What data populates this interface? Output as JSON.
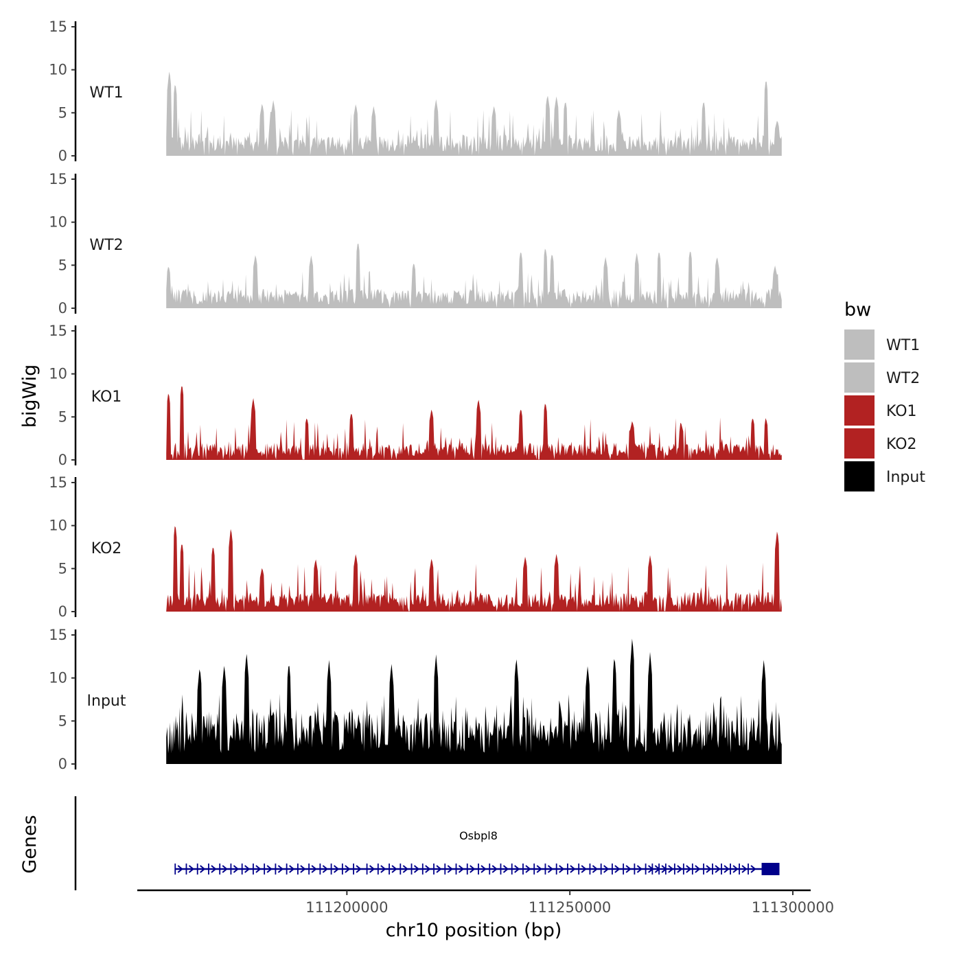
{
  "chart_data": {
    "type": "area",
    "title": "",
    "ylabel": "bigWig",
    "genes_label": "Genes",
    "xlabel": "chr10 position (bp)",
    "x_range": [
      111159500,
      111297500
    ],
    "x_axis_limits": [
      111153000,
      111304000
    ],
    "x_ticks": [
      111200000,
      111250000,
      111300000
    ],
    "x_tick_labels": [
      "111200000",
      "111250000",
      "111300000"
    ],
    "ylim": [
      0,
      15
    ],
    "y_ticks": [
      0,
      5,
      10,
      15
    ],
    "y_tick_labels": [
      "0",
      "5",
      "10",
      "15"
    ],
    "series": [
      {
        "name": "WT1",
        "color": "#bebebe",
        "baseline": 2.0,
        "max_value": 10.1,
        "gap_fraction": 0.04,
        "peaks": [
          [
            111160200,
            10.1
          ],
          [
            111161500,
            8.6
          ],
          [
            111181000,
            6.2
          ],
          [
            111183500,
            6.5
          ],
          [
            111202000,
            6.1
          ],
          [
            111206000,
            5.8
          ],
          [
            111220000,
            6.6
          ],
          [
            111233000,
            5.9
          ],
          [
            111245000,
            7.2
          ],
          [
            111247000,
            7.0
          ],
          [
            111249000,
            6.5
          ],
          [
            111261000,
            5.4
          ],
          [
            111280000,
            6.5
          ],
          [
            111294000,
            9.1
          ],
          [
            111296500,
            4.2
          ]
        ]
      },
      {
        "name": "WT2",
        "color": "#bebebe",
        "baseline": 1.8,
        "max_value": 7.9,
        "gap_fraction": 0.04,
        "peaks": [
          [
            111160000,
            5.0
          ],
          [
            111179500,
            6.3
          ],
          [
            111192000,
            6.2
          ],
          [
            111202500,
            7.9
          ],
          [
            111215000,
            5.4
          ],
          [
            111239000,
            6.8
          ],
          [
            111244500,
            7.2
          ],
          [
            111246000,
            6.5
          ],
          [
            111258000,
            6.0
          ],
          [
            111265000,
            6.5
          ],
          [
            111270000,
            6.8
          ],
          [
            111277000,
            6.9
          ],
          [
            111283000,
            6.1
          ],
          [
            111296000,
            5.0
          ]
        ]
      },
      {
        "name": "KO1",
        "color": "#b22222",
        "baseline": 1.6,
        "max_value": 9.0,
        "gap_fraction": 0.06,
        "peaks": [
          [
            111160000,
            8.0
          ],
          [
            111163000,
            9.0
          ],
          [
            111179000,
            7.3
          ],
          [
            111191000,
            5.0
          ],
          [
            111201000,
            5.6
          ],
          [
            111219000,
            6.0
          ],
          [
            111229500,
            7.2
          ],
          [
            111239000,
            6.1
          ],
          [
            111244500,
            6.8
          ],
          [
            111264000,
            4.6
          ],
          [
            111275000,
            4.2
          ],
          [
            111291000,
            5.0
          ],
          [
            111294000,
            4.8
          ]
        ]
      },
      {
        "name": "KO2",
        "color": "#b22222",
        "baseline": 1.8,
        "max_value": 10.4,
        "gap_fraction": 0.05,
        "peaks": [
          [
            111161500,
            10.4
          ],
          [
            111163000,
            8.2
          ],
          [
            111170000,
            7.8
          ],
          [
            111174000,
            9.9
          ],
          [
            111181000,
            5.2
          ],
          [
            111193000,
            6.2
          ],
          [
            111202000,
            6.8
          ],
          [
            111219000,
            6.3
          ],
          [
            111240000,
            6.5
          ],
          [
            111247000,
            6.8
          ],
          [
            111268000,
            6.6
          ],
          [
            111296500,
            9.6
          ]
        ]
      },
      {
        "name": "Input",
        "color": "#000000",
        "baseline": 5.0,
        "max_value": 14.9,
        "gap_fraction": 0.0,
        "peaks": [
          [
            111167000,
            11.4
          ],
          [
            111172500,
            11.7
          ],
          [
            111177500,
            13.1
          ],
          [
            111187000,
            12.0
          ],
          [
            111196000,
            12.2
          ],
          [
            111210000,
            11.8
          ],
          [
            111220000,
            12.8
          ],
          [
            111238000,
            12.5
          ],
          [
            111254000,
            11.5
          ],
          [
            111260000,
            12.7
          ],
          [
            111264000,
            14.9
          ],
          [
            111268000,
            13.1
          ],
          [
            111293500,
            12.3
          ]
        ]
      }
    ],
    "legend": {
      "title": "bw",
      "position": "right",
      "entries": [
        {
          "label": "WT1",
          "color": "#bebebe"
        },
        {
          "label": "WT2",
          "color": "#bebebe"
        },
        {
          "label": "KO1",
          "color": "#b22222"
        },
        {
          "label": "KO2",
          "color": "#b22222"
        },
        {
          "label": "Input",
          "color": "#000000"
        }
      ]
    },
    "gene": {
      "name": "Osbpl8",
      "strand": "+",
      "color": "#00008b",
      "start": 111161500,
      "end": 111297000,
      "exons_x": [
        111161500,
        111164000,
        111166500,
        111169000,
        111171500,
        111174000,
        111176500,
        111179000,
        111181500,
        111184000,
        111186500,
        111189000,
        111191500,
        111194000,
        111196500,
        111199000,
        111201500,
        111204500,
        111207000,
        111209500,
        111212000,
        111214500,
        111217000,
        111219500,
        111222000,
        111224500,
        111227000,
        111229500,
        111232000,
        111234500,
        111237000,
        111239500,
        111242000,
        111244500,
        111247000,
        111249500,
        111252000,
        111254500,
        111257000,
        111259500,
        111262000,
        111264500,
        111267000,
        111268500,
        111270000,
        111271500,
        111273500,
        111275500,
        111277500,
        111280000,
        111282000,
        111284000,
        111286000,
        111288000,
        111290000
      ],
      "utr_start": 111293000
    }
  }
}
